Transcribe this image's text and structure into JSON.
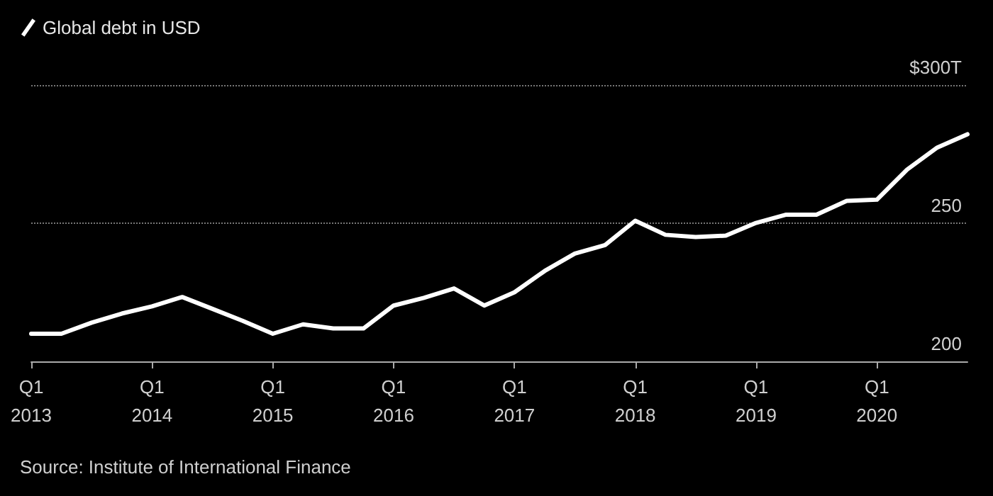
{
  "chart_data": {
    "type": "line",
    "categories": [
      "Q1\n2013",
      null,
      null,
      null,
      "Q1\n2014",
      null,
      null,
      null,
      "Q1\n2015",
      null,
      null,
      null,
      "Q1\n2016",
      null,
      null,
      null,
      "Q1\n2017",
      null,
      null,
      null,
      "Q1\n2018",
      null,
      null,
      null,
      "Q1\n2019",
      null,
      null,
      null,
      "Q1\n2020",
      null,
      null,
      null
    ],
    "series": [
      {
        "name": "Global debt in USD",
        "color": "#ffffff",
        "values": [
          210,
          210,
          214,
          217.3,
          219.9,
          223.3,
          219,
          214.7,
          210,
          213.4,
          211.9,
          211.9,
          220.2,
          223,
          226.4,
          220.2,
          225,
          232.7,
          239,
          242.1,
          250.9,
          245.8,
          245,
          245.5,
          250.1,
          253.1,
          253.1,
          258.1,
          258.5,
          269.4,
          277.4,
          282.2
        ]
      }
    ],
    "ylim": [
      200,
      300
    ],
    "yticks": [
      200,
      250,
      {
        "value": 300,
        "label": "$300T"
      }
    ],
    "grid": "y",
    "legend": "top left",
    "marker": "none",
    "line_style": "solid",
    "annotations": [
      "Source: Institute of International Finance"
    ]
  }
}
